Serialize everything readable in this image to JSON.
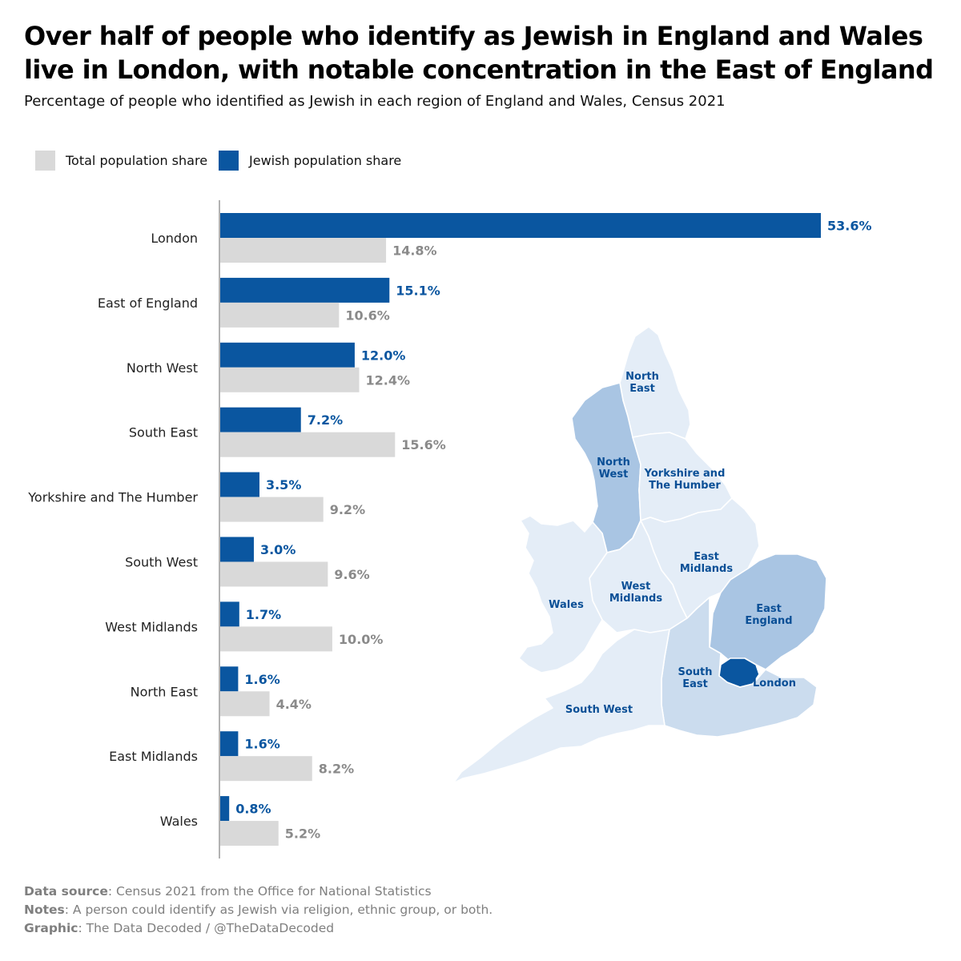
{
  "title": "Over half of people who identify as Jewish in England and Wales live in London, with notable concentration in the East of England",
  "subtitle": "Percentage of people who identified as Jewish in each region of England and Wales, Census 2021",
  "legend": {
    "total_label": "Total population share",
    "jewish_label": "Jewish population share"
  },
  "colors": {
    "jewish": "#0a56a0",
    "total": "#d9d9d9",
    "jewish_label": "#0a56a0",
    "total_label": "#8a8a8a"
  },
  "chart_data": {
    "type": "bar",
    "orientation": "horizontal",
    "categories": [
      "London",
      "East of England",
      "North West",
      "South East",
      "Yorkshire and The Humber",
      "South West",
      "West Midlands",
      "North East",
      "East Midlands",
      "Wales"
    ],
    "series": [
      {
        "name": "Jewish population share",
        "values": [
          53.6,
          15.1,
          12.0,
          7.2,
          3.5,
          3.0,
          1.7,
          1.6,
          1.6,
          0.8
        ]
      },
      {
        "name": "Total population share",
        "values": [
          14.8,
          10.6,
          12.4,
          15.6,
          9.2,
          9.6,
          10.0,
          4.4,
          8.2,
          5.2
        ]
      }
    ],
    "jewish_labels": [
      "53.6%",
      "15.1%",
      "12.0%",
      "7.2%",
      "3.5%",
      "3.0%",
      "1.7%",
      "1.6%",
      "1.6%",
      "0.8%"
    ],
    "total_labels": [
      "14.8%",
      "10.6%",
      "12.4%",
      "15.6%",
      "9.2%",
      "9.6%",
      "10.0%",
      "4.4%",
      "8.2%",
      "5.2%"
    ],
    "xlim": [
      0,
      53.6
    ],
    "grid": false,
    "legend_position": "top-left"
  },
  "map": {
    "labels": {
      "north_east": [
        "North",
        "East"
      ],
      "north_west": [
        "North",
        "West"
      ],
      "yorkshire": [
        "Yorkshire and",
        "The Humber"
      ],
      "east_midlands": [
        "East",
        "Midlands"
      ],
      "west_midlands": [
        "West",
        "Midlands"
      ],
      "wales": [
        "Wales"
      ],
      "east_england": [
        "East",
        "England"
      ],
      "south_east": [
        "South",
        "East"
      ],
      "london": [
        "London"
      ],
      "south_west": [
        "South West"
      ]
    },
    "shades": {
      "light": "#e4edf7",
      "medium": "#a9c5e3",
      "dark": "#0a56a0"
    }
  },
  "footer": {
    "source_label": "Data source",
    "source_text": ": Census 2021 from the Office for National Statistics",
    "notes_label": "Notes",
    "notes_text": ": A person could identify as Jewish via religion, ethnic group, or both.",
    "graphic_label": "Graphic",
    "graphic_text": ": The Data Decoded / @TheDataDecoded"
  }
}
